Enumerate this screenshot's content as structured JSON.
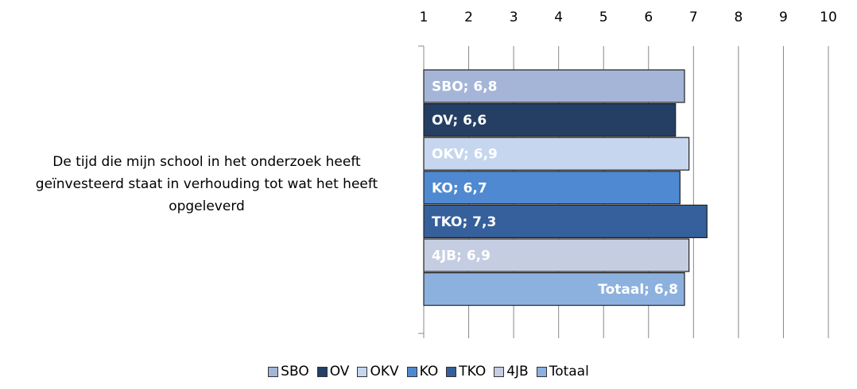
{
  "chart_data": {
    "type": "bar",
    "horizontal": true,
    "categories": [
      "De tijd die mijn school in het onderzoek heeft geïnvesteerd staat in verhouding tot wat het heeft opgeleverd"
    ],
    "series": [
      {
        "name": "SBO",
        "color": "#a5b5d8",
        "values": [
          6.8
        ],
        "value_labels": [
          "SBO; 6,8"
        ]
      },
      {
        "name": "OV",
        "color": "#243f63",
        "values": [
          6.6
        ],
        "value_labels": [
          "OV; 6,6"
        ]
      },
      {
        "name": "OKV",
        "color": "#c6d6ef",
        "values": [
          6.9
        ],
        "value_labels": [
          "OKV; 6,9"
        ]
      },
      {
        "name": "KO",
        "color": "#4f89d1",
        "values": [
          6.7
        ],
        "value_labels": [
          "KO; 6,7"
        ]
      },
      {
        "name": "TKO",
        "color": "#35609b",
        "values": [
          7.3
        ],
        "value_labels": [
          "TKO; 7,3"
        ]
      },
      {
        "name": "4JB",
        "color": "#c4cde1",
        "values": [
          6.9
        ],
        "value_labels": [
          "4JB; 6,9"
        ]
      },
      {
        "name": "Totaal",
        "color": "#8db1df",
        "values": [
          6.8
        ],
        "value_labels": [
          "Totaal;  6,8"
        ]
      }
    ],
    "xlim": [
      1,
      10
    ],
    "xticks": [
      1,
      2,
      3,
      4,
      5,
      6,
      7,
      8,
      9,
      10
    ],
    "grid": true,
    "legend": "bottom"
  }
}
